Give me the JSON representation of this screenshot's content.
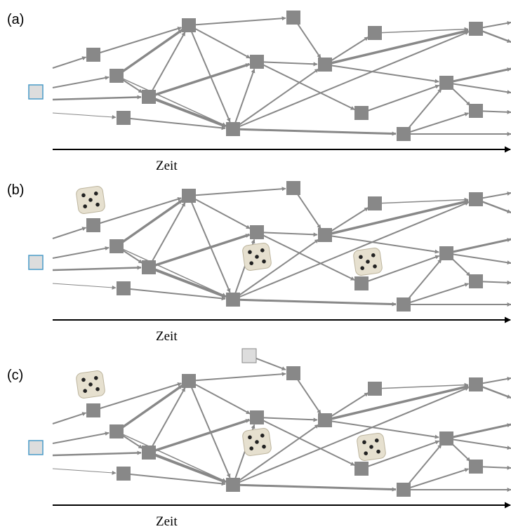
{
  "panels": [
    {
      "label": "(a)",
      "axis_label": "Zeit"
    },
    {
      "label": "(b)",
      "axis_label": "Zeit"
    },
    {
      "label": "(c)",
      "axis_label": "Zeit"
    }
  ]
}
